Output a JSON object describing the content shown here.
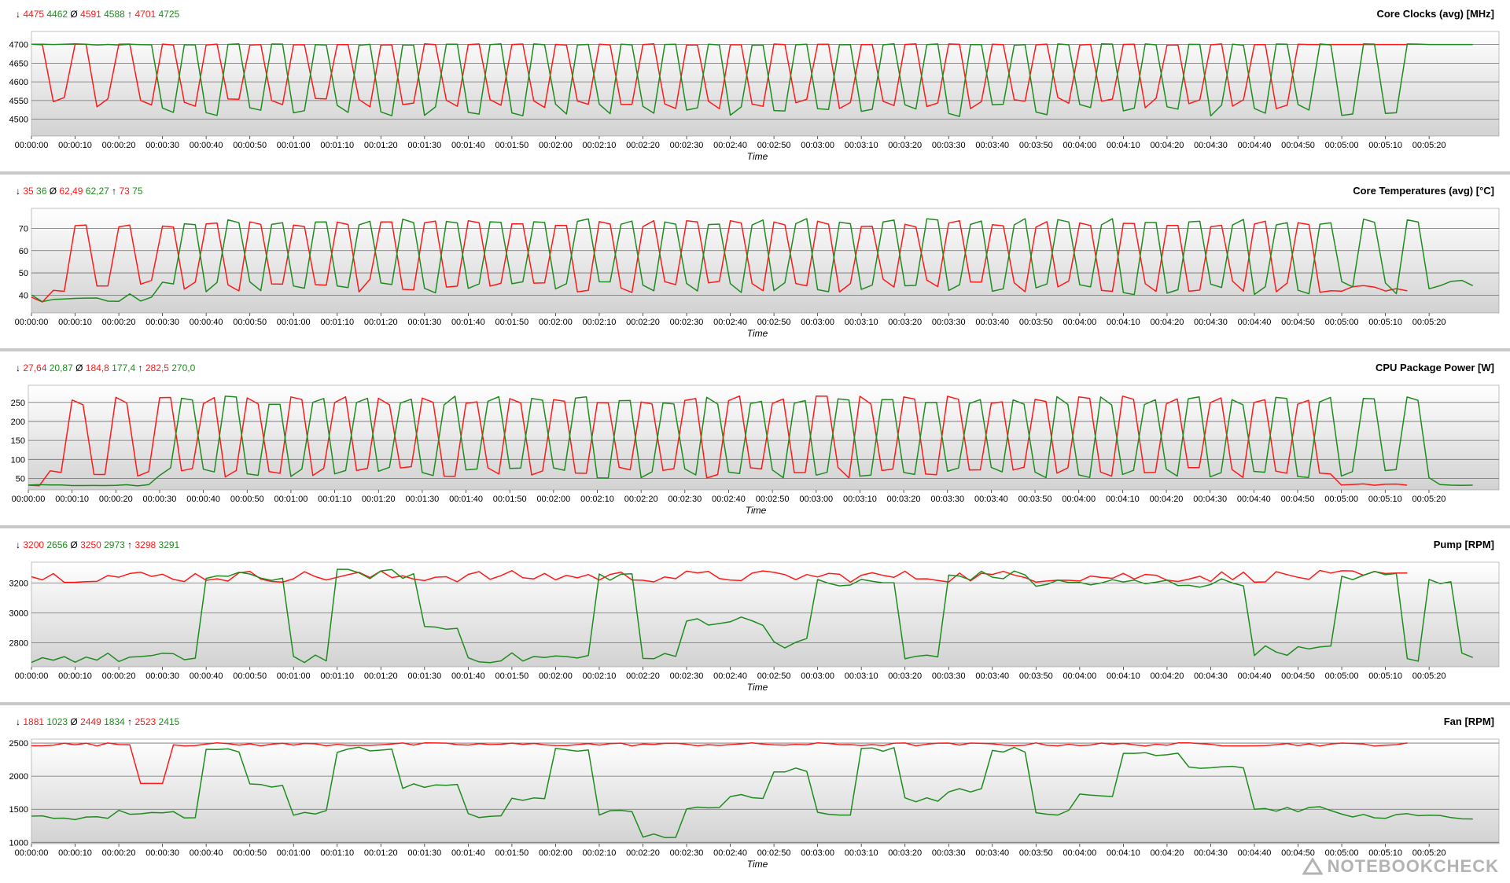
{
  "colors": {
    "series_a": "#ff1a1a",
    "series_b": "#1f8c1f",
    "plot_bg_top": "#ffffff",
    "plot_bg_bottom": "#d2d2d2",
    "grid": "#6e6e6e"
  },
  "watermark": {
    "text": "NOTEBOOKCHECK",
    "icon": "notebookcheck-logo-icon"
  },
  "symbols": {
    "min": "↓",
    "avg": "Ø",
    "max": "↑"
  },
  "chart_data": [
    {
      "type": "line",
      "title": "Core Clocks (avg) [MHz]",
      "xlabel": "Time",
      "ylim": [
        4455,
        4735
      ],
      "yticks": [
        4500,
        4550,
        4600,
        4650,
        4700
      ],
      "xticks": [
        "00:00:00",
        "00:00:10",
        "00:00:20",
        "00:00:30",
        "00:00:40",
        "00:00:50",
        "00:01:00",
        "00:01:10",
        "00:01:20",
        "00:01:30",
        "00:01:40",
        "00:01:50",
        "00:02:00",
        "00:02:10",
        "00:02:20",
        "00:02:30",
        "00:02:40",
        "00:02:50",
        "00:03:00",
        "00:03:10",
        "00:03:20",
        "00:03:30",
        "00:03:40",
        "00:03:50",
        "00:04:00",
        "00:04:10",
        "00:04:20",
        "00:04:30",
        "00:04:40",
        "00:04:50",
        "00:05:00",
        "00:05:10",
        "00:05:20"
      ],
      "stats": {
        "min": [
          "4475",
          "4462"
        ],
        "avg": [
          "4591",
          "4588"
        ],
        "max": [
          "4701",
          "4725"
        ]
      },
      "series": [
        {
          "color": "red",
          "pattern": "plateau_dip",
          "active_until_s": 315,
          "high": 4700,
          "low": 4540,
          "period_s": 10,
          "noise": 30,
          "phase": 0.0
        },
        {
          "color": "green",
          "pattern": "plateau_dip",
          "active_until_s": 330,
          "high": 4700,
          "low": 4520,
          "period_s": 10,
          "noise": 35,
          "phase": 0.5
        }
      ]
    },
    {
      "type": "line",
      "title": "Core Temperatures (avg) [°C]",
      "xlabel": "Time",
      "ylim": [
        32,
        79
      ],
      "yticks": [
        40,
        50,
        60,
        70
      ],
      "xticks": [
        "00:00:00",
        "00:00:10",
        "00:00:20",
        "00:00:30",
        "00:00:40",
        "00:00:50",
        "00:01:00",
        "00:01:10",
        "00:01:20",
        "00:01:30",
        "00:01:40",
        "00:01:50",
        "00:02:00",
        "00:02:10",
        "00:02:20",
        "00:02:30",
        "00:02:40",
        "00:02:50",
        "00:03:00",
        "00:03:10",
        "00:03:20",
        "00:03:30",
        "00:03:40",
        "00:03:50",
        "00:04:00",
        "00:04:10",
        "00:04:20",
        "00:04:30",
        "00:04:40",
        "00:04:50",
        "00:05:00",
        "00:05:10",
        "00:05:20"
      ],
      "stats": {
        "min": [
          "35",
          "36"
        ],
        "avg": [
          "62,49",
          "62,27"
        ],
        "max": [
          "73",
          "75"
        ]
      },
      "series": [
        {
          "color": "red",
          "pattern": "warm_osc",
          "active_until_s": 315,
          "high": 72,
          "low": 43,
          "start": 36,
          "idle_after_s": 298,
          "idle": 41,
          "period_s": 10,
          "phase": 0.0
        },
        {
          "color": "green",
          "pattern": "warm_osc",
          "active_until_s": 330,
          "high": 73,
          "low": 42,
          "start": 37,
          "idle_after_s": 322,
          "idle": 43,
          "period_s": 10,
          "phase": 0.5,
          "warm_start_s": 30
        }
      ]
    },
    {
      "type": "line",
      "title": "CPU Package Power [W]",
      "xlabel": "Time",
      "ylim": [
        20,
        295
      ],
      "yticks": [
        50,
        100,
        150,
        200,
        250
      ],
      "xticks": [
        "00:00:00",
        "00:00:10",
        "00:00:20",
        "00:00:30",
        "00:00:40",
        "00:00:50",
        "00:01:00",
        "00:01:10",
        "00:01:20",
        "00:01:30",
        "00:01:40",
        "00:01:50",
        "00:02:00",
        "00:02:10",
        "00:02:20",
        "00:02:30",
        "00:02:40",
        "00:02:50",
        "00:03:00",
        "00:03:10",
        "00:03:20",
        "00:03:30",
        "00:03:40",
        "00:03:50",
        "00:04:00",
        "00:04:10",
        "00:04:20",
        "00:04:30",
        "00:04:40",
        "00:04:50",
        "00:05:00",
        "00:05:10",
        "00:05:20"
      ],
      "stats": {
        "min": [
          "27,64",
          "20,87"
        ],
        "avg": [
          "184,8",
          "177,4"
        ],
        "max": [
          "282,5",
          "270,0"
        ]
      },
      "series": [
        {
          "color": "red",
          "pattern": "power_osc",
          "active_until_s": 315,
          "high": 255,
          "low": 60,
          "start": 30,
          "idle_after_s": 298,
          "idle": 32,
          "period_s": 10,
          "phase": 0.0
        },
        {
          "color": "green",
          "pattern": "power_osc",
          "active_until_s": 330,
          "high": 255,
          "low": 60,
          "start": 30,
          "idle_after_s": 322,
          "idle": 32,
          "period_s": 10,
          "phase": 0.5,
          "warm_start_s": 30
        }
      ]
    },
    {
      "type": "line",
      "title": "Pump [RPM]",
      "xlabel": "Time",
      "ylim": [
        2640,
        3340
      ],
      "yticks": [
        2800,
        3000,
        3200
      ],
      "xticks": [
        "00:00:00",
        "00:00:10",
        "00:00:20",
        "00:00:30",
        "00:00:40",
        "00:00:50",
        "00:01:00",
        "00:01:10",
        "00:01:20",
        "00:01:30",
        "00:01:40",
        "00:01:50",
        "00:02:00",
        "00:02:10",
        "00:02:20",
        "00:02:30",
        "00:02:40",
        "00:02:50",
        "00:03:00",
        "00:03:10",
        "00:03:20",
        "00:03:30",
        "00:03:40",
        "00:03:50",
        "00:04:00",
        "00:04:10",
        "00:04:20",
        "00:04:30",
        "00:04:40",
        "00:04:50",
        "00:05:00",
        "00:05:10",
        "00:05:20"
      ],
      "stats": {
        "min": [
          "3200",
          "2656"
        ],
        "avg": [
          "3250",
          "2973"
        ],
        "max": [
          "3298",
          "3291"
        ]
      },
      "series": [
        {
          "color": "red",
          "pattern": "flat_noise",
          "active_until_s": 315,
          "base": 3245,
          "noise": 40
        },
        {
          "color": "green",
          "pattern": "steps",
          "active_until_s": 330,
          "levels": [
            [
              0,
              2700
            ],
            [
              40,
              3240
            ],
            [
              60,
              2700
            ],
            [
              70,
              3260
            ],
            [
              90,
              2900
            ],
            [
              100,
              2700
            ],
            [
              130,
              3250
            ],
            [
              140,
              2700
            ],
            [
              150,
              2950
            ],
            [
              170,
              2800
            ],
            [
              180,
              3200
            ],
            [
              200,
              2700
            ],
            [
              210,
              3250
            ],
            [
              230,
              3200
            ],
            [
              250,
              3200
            ],
            [
              280,
              2750
            ],
            [
              300,
              3250
            ],
            [
              315,
              2700
            ],
            [
              320,
              3200
            ],
            [
              326,
              2720
            ]
          ],
          "noise": 35
        }
      ]
    },
    {
      "type": "line",
      "title": "Fan [RPM]",
      "xlabel": "Time",
      "ylim": [
        980,
        2560
      ],
      "yticks": [
        1000,
        1500,
        2000,
        2500
      ],
      "xticks": [
        "00:00:00",
        "00:00:10",
        "00:00:20",
        "00:00:30",
        "00:00:40",
        "00:00:50",
        "00:01:00",
        "00:01:10",
        "00:01:20",
        "00:01:30",
        "00:01:40",
        "00:01:50",
        "00:02:00",
        "00:02:10",
        "00:02:20",
        "00:02:30",
        "00:02:40",
        "00:02:50",
        "00:03:00",
        "00:03:10",
        "00:03:20",
        "00:03:30",
        "00:03:40",
        "00:03:50",
        "00:04:00",
        "00:04:10",
        "00:04:20",
        "00:04:30",
        "00:04:40",
        "00:04:50",
        "00:05:00",
        "00:05:10",
        "00:05:20"
      ],
      "stats": {
        "min": [
          "1881",
          "1023"
        ],
        "avg": [
          "2449",
          "1834"
        ],
        "max": [
          "2523",
          "2415"
        ]
      },
      "series": [
        {
          "color": "red",
          "pattern": "flat_noise",
          "active_until_s": 315,
          "base": 2480,
          "noise": 25,
          "dip": [
            24,
            30,
            1890
          ]
        },
        {
          "color": "green",
          "pattern": "steps",
          "active_until_s": 330,
          "levels": [
            [
              0,
              1380
            ],
            [
              20,
              1450
            ],
            [
              35,
              1400
            ],
            [
              38,
              2400
            ],
            [
              48,
              1850
            ],
            [
              60,
              1450
            ],
            [
              70,
              2400
            ],
            [
              85,
              1850
            ],
            [
              100,
              1400
            ],
            [
              110,
              1650
            ],
            [
              120,
              2400
            ],
            [
              130,
              1450
            ],
            [
              140,
              1100
            ],
            [
              150,
              1500
            ],
            [
              160,
              1700
            ],
            [
              170,
              2100
            ],
            [
              180,
              1450
            ],
            [
              190,
              2400
            ],
            [
              200,
              1650
            ],
            [
              210,
              1800
            ],
            [
              220,
              2400
            ],
            [
              230,
              1450
            ],
            [
              240,
              1700
            ],
            [
              250,
              2350
            ],
            [
              265,
              2150
            ],
            [
              280,
              1500
            ],
            [
              300,
              1400
            ],
            [
              320,
              1380
            ]
          ],
          "noise": 40
        }
      ]
    }
  ]
}
